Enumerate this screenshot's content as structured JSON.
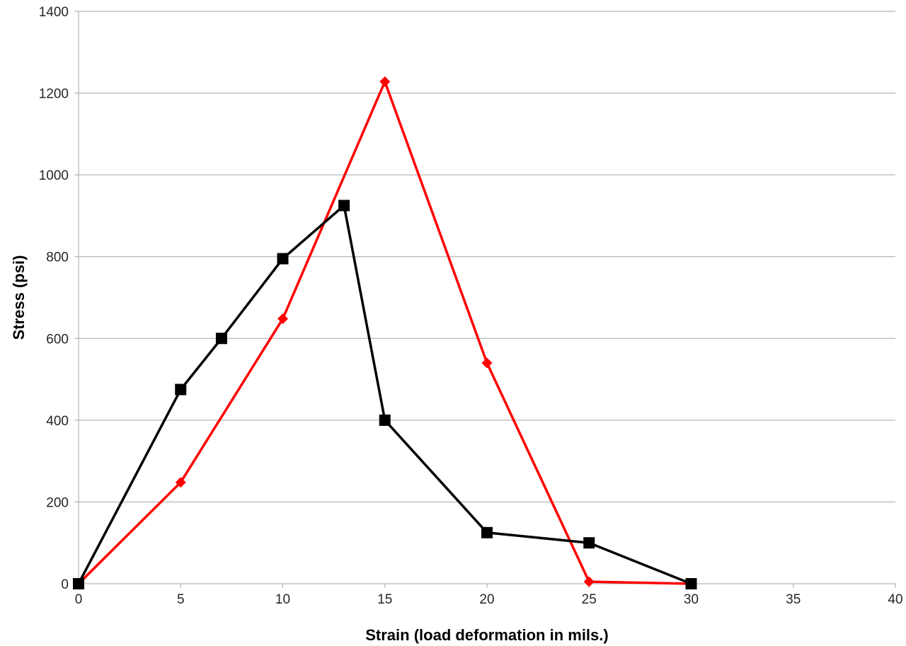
{
  "chart_data": {
    "type": "line",
    "title": "",
    "xlabel": "Strain (load deformation in mils.)",
    "ylabel": "Stress (psi)",
    "xlim": [
      0,
      40
    ],
    "ylim": [
      0,
      1400
    ],
    "xticks": [
      0,
      5,
      10,
      15,
      20,
      25,
      30,
      35,
      40
    ],
    "yticks": [
      0,
      200,
      400,
      600,
      800,
      1000,
      1200,
      1400
    ],
    "grid": "horizontal",
    "legend": "none",
    "series": [
      {
        "color": "#ff0000",
        "marker": "diamond",
        "x": [
          0,
          5,
          10,
          15,
          20,
          25,
          30
        ],
        "y": [
          0,
          248,
          648,
          1228,
          540,
          5,
          0
        ]
      },
      {
        "color": "#000000",
        "marker": "square",
        "x": [
          0,
          5,
          7,
          10,
          13,
          15,
          20,
          25,
          30
        ],
        "y": [
          0,
          475,
          600,
          795,
          925,
          400,
          125,
          100,
          0
        ]
      }
    ]
  }
}
